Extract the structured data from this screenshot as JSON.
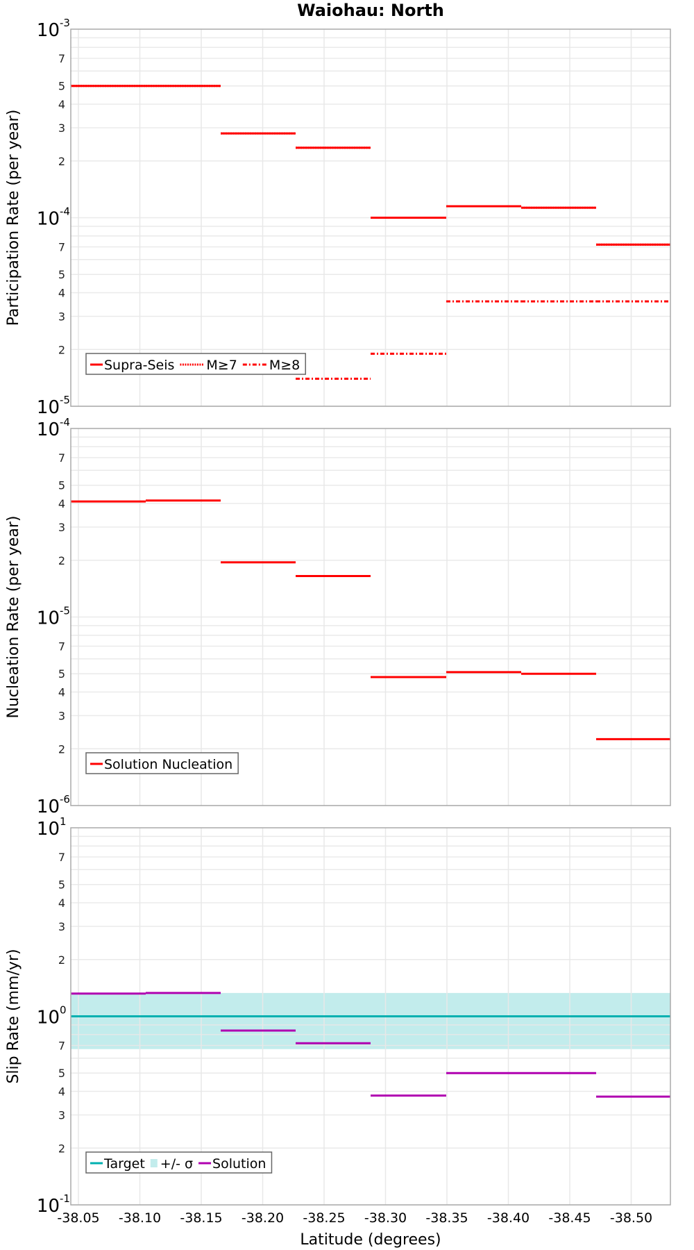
{
  "title": "Waiohau: North",
  "chart_data": [
    {
      "type": "line",
      "id": "participation",
      "title": "Waiohau: North",
      "ylabel": "Participation Rate (per year)",
      "xlabel": "",
      "yscale": "log",
      "ylim": [
        1e-05,
        0.001
      ],
      "x_edges": [
        -38.044,
        -38.105,
        -38.166,
        -38.227,
        -38.288,
        -38.35,
        -38.411,
        -38.472,
        -38.533
      ],
      "series": [
        {
          "name": "Supra-Seis",
          "style": "solid",
          "color": "#ff0000",
          "values": [
            0.0005,
            0.0005,
            0.00028,
            0.000235,
            0.0001,
            0.000115,
            0.000113,
            7.2e-05
          ]
        },
        {
          "name": "M≥7",
          "style": "dotted",
          "color": "#ff0000",
          "values": [
            0.0005,
            0.0005,
            0.00028,
            0.000235,
            0.0001,
            0.000115,
            0.000113,
            7.2e-05
          ]
        },
        {
          "name": "M≥8",
          "style": "dashdot",
          "color": "#ff0000",
          "values": [
            null,
            null,
            null,
            1.4e-05,
            1.9e-05,
            3.6e-05,
            3.6e-05,
            3.6e-05
          ]
        }
      ],
      "legend": [
        "Supra-Seis",
        "M≥7",
        "M≥8"
      ],
      "legend_position": "lower left"
    },
    {
      "type": "line",
      "id": "nucleation",
      "ylabel": "Nucleation Rate (per year)",
      "yscale": "log",
      "ylim": [
        1e-06,
        0.0001
      ],
      "x_edges": [
        -38.044,
        -38.105,
        -38.166,
        -38.227,
        -38.288,
        -38.35,
        -38.411,
        -38.472,
        -38.533
      ],
      "series": [
        {
          "name": "Solution Nucleation",
          "style": "solid",
          "color": "#ff0000",
          "values": [
            4.1e-05,
            4.15e-05,
            1.95e-05,
            1.65e-05,
            4.8e-06,
            5.1e-06,
            5e-06,
            2.25e-06
          ]
        }
      ],
      "legend": [
        "Solution Nucleation"
      ],
      "legend_position": "lower left"
    },
    {
      "type": "line",
      "id": "slip",
      "ylabel": "Slip Rate (mm/yr)",
      "xlabel": "Latitude (degrees)",
      "yscale": "log",
      "ylim": [
        0.1,
        10
      ],
      "x_edges": [
        -38.044,
        -38.105,
        -38.166,
        -38.227,
        -38.288,
        -38.35,
        -38.411,
        -38.472,
        -38.533
      ],
      "series": [
        {
          "name": "Target",
          "style": "solid",
          "color": "#00b0b0",
          "values": [
            1.0,
            1.0,
            1.0,
            1.0,
            1.0,
            1.0,
            1.0,
            1.0
          ]
        },
        {
          "name": "+/- σ",
          "style": "band",
          "color": "#c2ecec",
          "lower": [
            0.67,
            0.67,
            0.67,
            0.67,
            0.67,
            0.67,
            0.67,
            0.67
          ],
          "upper": [
            1.33,
            1.33,
            1.33,
            1.33,
            1.33,
            1.33,
            1.33,
            1.33
          ]
        },
        {
          "name": "Solution",
          "style": "solid",
          "color": "#b000b0",
          "values": [
            1.32,
            1.33,
            0.84,
            0.72,
            0.38,
            0.5,
            0.5,
            0.375
          ]
        }
      ],
      "legend": [
        "Target",
        "+/- σ",
        "Solution"
      ],
      "legend_position": "lower left"
    }
  ],
  "x_axis": {
    "label": "Latitude (degrees)",
    "ticks": [
      "-38.05",
      "-38.10",
      "-38.15",
      "-38.20",
      "-38.25",
      "-38.30",
      "-38.35",
      "-38.40",
      "-38.45",
      "-38.50"
    ],
    "tick_values": [
      -38.05,
      -38.1,
      -38.15,
      -38.2,
      -38.25,
      -38.3,
      -38.35,
      -38.4,
      -38.45,
      -38.5
    ]
  },
  "panels": [
    {
      "ylabel": "Participation Rate (per year)",
      "major_labels": [
        {
          "base": "10",
          "exp": "-3"
        },
        {
          "base": "10",
          "exp": "-4"
        },
        {
          "base": "10",
          "exp": "-5"
        }
      ],
      "legend": [
        {
          "label": "Supra-Seis",
          "style": "solid"
        },
        {
          "label": "M≥7",
          "style": "dotted"
        },
        {
          "label": "M≥8",
          "style": "dashdot"
        }
      ]
    },
    {
      "ylabel": "Nucleation Rate (per year)",
      "major_labels": [
        {
          "base": "10",
          "exp": "-4"
        },
        {
          "base": "10",
          "exp": "-5"
        },
        {
          "base": "10",
          "exp": "-6"
        }
      ],
      "legend": [
        {
          "label": "Solution Nucleation",
          "style": "solid"
        }
      ]
    },
    {
      "ylabel": "Slip Rate (mm/yr)",
      "major_labels": [
        {
          "base": "10",
          "exp": "1"
        },
        {
          "base": "10",
          "exp": "0"
        },
        {
          "base": "10",
          "exp": "-1"
        }
      ],
      "legend": [
        {
          "label": "Target",
          "style": "solid"
        },
        {
          "label": "+/- σ",
          "style": "band"
        },
        {
          "label": "Solution",
          "style": "solid"
        }
      ]
    }
  ],
  "minor_tick_labels": [
    "7",
    "5",
    "4",
    "3",
    "2"
  ],
  "colors": {
    "red": "#ff0000",
    "teal": "#00b0b0",
    "band": "#c2ecec",
    "magenta": "#b000b0",
    "grid": "#e8e8e8",
    "frame": "#aaaaaa"
  }
}
